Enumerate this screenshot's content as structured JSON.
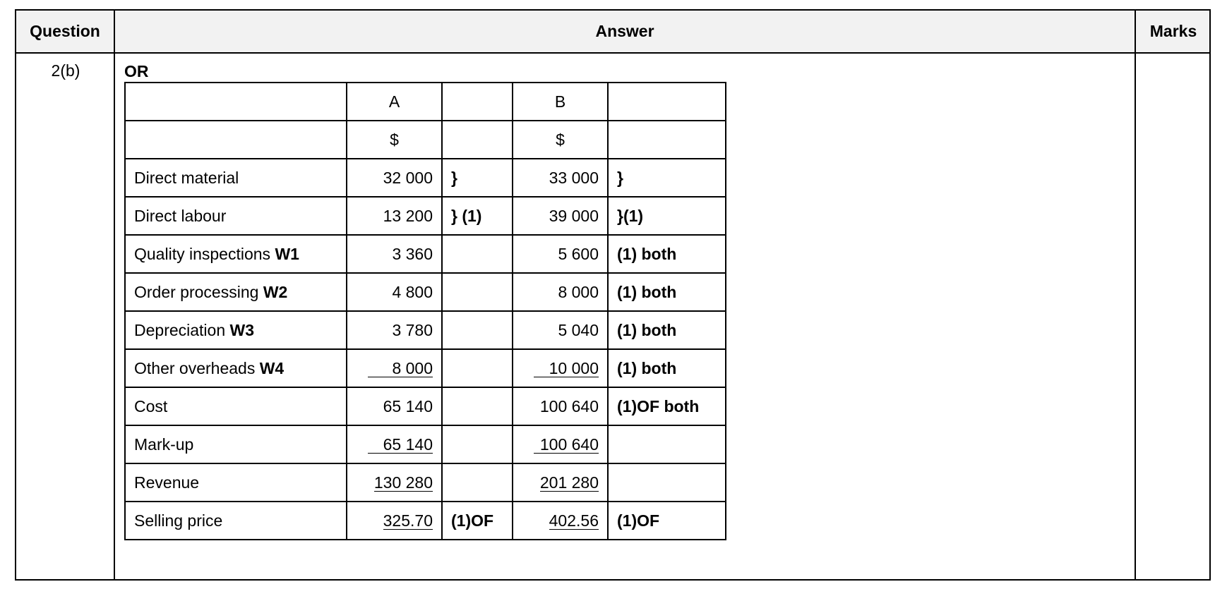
{
  "header": {
    "question": "Question",
    "answer": "Answer",
    "marks": "Marks"
  },
  "question_number": "2(b)",
  "or_label": "OR",
  "table": {
    "head": [
      {
        "label": "",
        "a": "A",
        "a_mark": "",
        "b": "B",
        "b_mark": ""
      },
      {
        "label": "",
        "a": "$",
        "a_mark": "",
        "b": "$",
        "b_mark": ""
      }
    ],
    "rows": [
      {
        "label": "Direct material",
        "ref": "",
        "a": "32 000",
        "a_mark": "}",
        "b": "33 000",
        "b_mark": "}"
      },
      {
        "label": "Direct labour",
        "ref": "",
        "a": "13 200",
        "a_mark": "} (1)",
        "b": "39 000",
        "b_mark": "}(1)"
      },
      {
        "label": "Quality inspections ",
        "ref": "W1",
        "a": "3 360",
        "a_mark": "",
        "b": "5 600",
        "b_mark": "(1) both"
      },
      {
        "label": "Order processing ",
        "ref": "W2",
        "a": "4 800",
        "a_mark": "",
        "b": "8 000",
        "b_mark": "(1) both"
      },
      {
        "label": "Depreciation ",
        "ref": "W3",
        "a": "3 780",
        "a_mark": "",
        "b": "5 040",
        "b_mark": "(1) both"
      },
      {
        "label": "Other overheads ",
        "ref": "W4",
        "a": "8 000",
        "a_mark": "",
        "b": "10 000",
        "b_mark": "(1) both"
      },
      {
        "label": "Cost",
        "ref": "",
        "a": "65 140",
        "a_mark": "",
        "b": "100 640",
        "b_mark": "(1)OF both"
      },
      {
        "label": "Mark-up",
        "ref": "",
        "a": "65 140",
        "a_mark": "",
        "b": "100 640",
        "b_mark": ""
      },
      {
        "label": "Revenue",
        "ref": "",
        "a": "130 280",
        "a_mark": "",
        "b": "201 280",
        "b_mark": ""
      },
      {
        "label": "Selling price",
        "ref": "",
        "a": "325.70",
        "a_mark": "(1)OF",
        "b": "402.56",
        "b_mark": "(1)OF"
      }
    ]
  }
}
